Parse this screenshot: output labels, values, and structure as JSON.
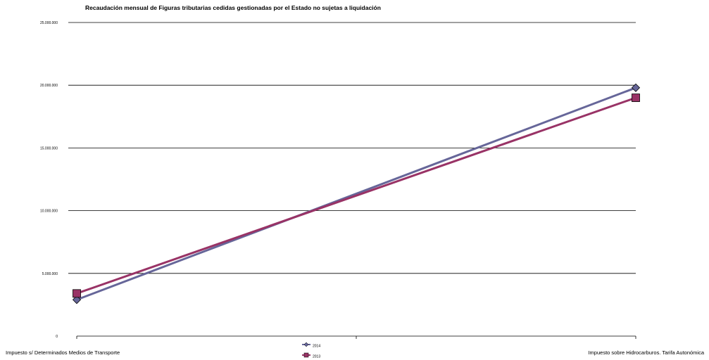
{
  "chart_data": {
    "type": "line",
    "title": "Recaudación mensual de  Figuras tributarias cedidas gestionadas por el Estado no sujetas a liquidación",
    "categories": [
      "Impuesto s/ Determinados Medios de Transporte",
      "Impuesto sobre Hidrocarburos. Tarifa Autonómica"
    ],
    "y_tick_labels": [
      "0",
      "5.000.000",
      "10.000.000",
      "15.000.000",
      "20.000.000",
      "25.000.000"
    ],
    "y_ticks": [
      0,
      5000000,
      10000000,
      15000000,
      20000000,
      25000000
    ],
    "ylim": [
      0,
      25000000
    ],
    "series": [
      {
        "name": "2014",
        "values": [
          2900000,
          19800000
        ],
        "color": "#666699",
        "marker": "diamond"
      },
      {
        "name": "2013",
        "values": [
          3400000,
          19000000
        ],
        "color": "#993366",
        "marker": "square"
      }
    ],
    "grid": true,
    "legend": "bottom-center"
  }
}
